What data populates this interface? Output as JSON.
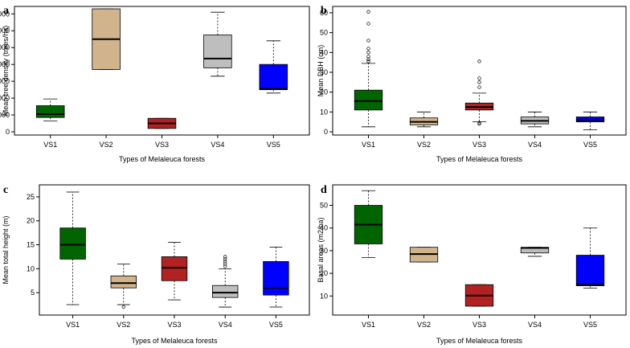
{
  "chart_data": [
    {
      "panel": "a",
      "type": "box",
      "title": "",
      "xlabel": "Types of Melaleuca forests",
      "ylabel": "Mean tree density (trees/ha)",
      "ylim": [
        0,
        14600
      ],
      "yticks": [
        0,
        2000,
        4000,
        6000,
        8000,
        10000,
        12000,
        14000
      ],
      "categories": [
        "VS1",
        "VS2",
        "VS3",
        "VS4",
        "VS5"
      ],
      "colors": [
        "#006400",
        "#D2B48C",
        "#B22222",
        "#BEBEBE",
        "#0000FF"
      ],
      "boxes": [
        {
          "min": 1300,
          "q1": 1700,
          "median": 2100,
          "q3": 3100,
          "max": 3900,
          "outliers": []
        },
        {
          "min": 7400,
          "q1": 7400,
          "median": 11000,
          "q3": 14600,
          "max": 14600,
          "outliers": []
        },
        {
          "min": 400,
          "q1": 400,
          "median": 1000,
          "q3": 1600,
          "max": 1600,
          "outliers": []
        },
        {
          "min": 6600,
          "q1": 7600,
          "median": 8700,
          "q3": 11500,
          "max": 14200,
          "outliers": []
        },
        {
          "min": 4600,
          "q1": 5000,
          "median": 5100,
          "q3": 8000,
          "max": 10800,
          "outliers": []
        }
      ]
    },
    {
      "panel": "b",
      "type": "box",
      "title": "",
      "xlabel": "Types of Melaleuca forests",
      "ylabel": "Mean DBH (cm)",
      "ylim": [
        0,
        62
      ],
      "yticks": [
        0,
        10,
        20,
        30,
        40,
        50,
        60
      ],
      "categories": [
        "VS1",
        "VS2",
        "VS3",
        "VS4",
        "VS5"
      ],
      "colors": [
        "#006400",
        "#D2B48C",
        "#B22222",
        "#BEBEBE",
        "#0000FF"
      ],
      "boxes": [
        {
          "min": 2.5,
          "q1": 11,
          "median": 15.5,
          "q3": 21,
          "max": 34.5,
          "outliers": [
            35.5,
            36.5,
            38,
            40,
            42,
            46,
            54.5,
            60.5
          ]
        },
        {
          "min": 2.5,
          "q1": 3.5,
          "median": 5,
          "q3": 7,
          "max": 10,
          "outliers": []
        },
        {
          "min": 5,
          "q1": 11,
          "median": 12.5,
          "q3": 14.5,
          "max": 19.5,
          "outliers": [
            4,
            4.5,
            22.5,
            25,
            27,
            35.5
          ]
        },
        {
          "min": 2.5,
          "q1": 4,
          "median": 5.5,
          "q3": 7.5,
          "max": 10,
          "outliers": []
        },
        {
          "min": 1,
          "q1": 5,
          "median": 6,
          "q3": 7.5,
          "max": 10,
          "outliers": []
        }
      ]
    },
    {
      "panel": "c",
      "type": "box",
      "title": "",
      "xlabel": "Types of Melaleuca forests",
      "ylabel": "Mean total height (m)",
      "ylim": [
        1,
        27
      ],
      "yticks": [
        5,
        10,
        15,
        20,
        25
      ],
      "categories": [
        "VS1",
        "VS2",
        "VS3",
        "VS4",
        "VS5"
      ],
      "colors": [
        "#006400",
        "#D2B48C",
        "#B22222",
        "#BEBEBE",
        "#0000FF"
      ],
      "boxes": [
        {
          "min": 2.5,
          "q1": 12,
          "median": 15,
          "q3": 18.5,
          "max": 26,
          "outliers": []
        },
        {
          "min": 2.5,
          "q1": 6,
          "median": 7,
          "q3": 8.5,
          "max": 11,
          "outliers": [
            2
          ]
        },
        {
          "min": 3.5,
          "q1": 7.5,
          "median": 10.2,
          "q3": 12.5,
          "max": 15.5,
          "outliers": []
        },
        {
          "min": 2,
          "q1": 4,
          "median": 5,
          "q3": 6.5,
          "max": 10,
          "outliers": [
            10.5,
            11,
            11.5,
            12,
            12.5
          ]
        },
        {
          "min": 2,
          "q1": 4.5,
          "median": 6,
          "q3": 11.5,
          "max": 14.5,
          "outliers": []
        }
      ]
    },
    {
      "panel": "d",
      "type": "box",
      "title": "",
      "xlabel": "Types of Melaleuca forests",
      "ylabel": "Basal areas (m2/ha)",
      "ylim": [
        3,
        58
      ],
      "yticks": [
        10,
        20,
        30,
        40,
        50
      ],
      "categories": [
        "VS1",
        "VS2",
        "VS3",
        "VS4",
        "VS5"
      ],
      "colors": [
        "#006400",
        "#D2B48C",
        "#B22222",
        "#BEBEBE",
        "#0000FF"
      ],
      "boxes": [
        {
          "min": 27,
          "q1": 33,
          "median": 41.5,
          "q3": 50,
          "max": 56.5,
          "outliers": []
        },
        {
          "min": 25,
          "q1": 25,
          "median": 28.5,
          "q3": 31.5,
          "max": 31.5,
          "outliers": []
        },
        {
          "min": 5.5,
          "q1": 5.5,
          "median": 10.2,
          "q3": 15,
          "max": 15,
          "outliers": []
        },
        {
          "min": 27.5,
          "q1": 29,
          "median": 31.2,
          "q3": 31.5,
          "max": 31.5,
          "outliers": []
        },
        {
          "min": 13.5,
          "q1": 14.5,
          "median": 15.2,
          "q3": 28,
          "max": 40,
          "outliers": []
        }
      ]
    }
  ]
}
